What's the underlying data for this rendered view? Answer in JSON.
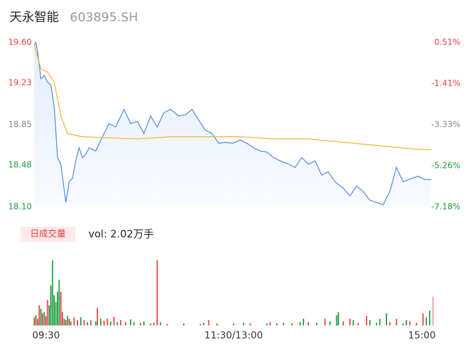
{
  "header": {
    "name": "天永智能",
    "code": "603895.SH"
  },
  "chart_data": [
    {
      "type": "line",
      "xlim": [
        0,
        240
      ],
      "xticks": [
        {
          "value": 0,
          "label": "09:30"
        },
        {
          "value": 120,
          "label": "11:30/13:00"
        },
        {
          "value": 240,
          "label": "15:00"
        }
      ],
      "ylim": [
        18.1,
        19.6
      ],
      "yticks": [
        {
          "value": 19.6,
          "label": "19.60"
        },
        19.23,
        18.85,
        18.48,
        {
          "value": 18.1,
          "label": "18.10"
        }
      ],
      "ytick_colors": [
        "#e84141",
        "#e84141",
        "#888888",
        "#1e9c3c",
        "#1e9c3c"
      ],
      "y2lim": [
        -7.18,
        0.51
      ],
      "y2ticks": [
        {
          "value": 0.51,
          "label": "0.51%"
        },
        {
          "value": -1.41,
          "label": "-1.41%"
        },
        {
          "value": -3.33,
          "label": "-3.33%"
        },
        {
          "value": -5.26,
          "label": "-5.26%"
        },
        {
          "value": -7.18,
          "label": "-7.18%"
        }
      ],
      "y2tick_colors": [
        "#e84141",
        "#e84141",
        "#888888",
        "#1e9c3c",
        "#1e9c3c"
      ],
      "grid": false,
      "series": [
        {
          "color": "#4a86e8",
          "x": [
            0,
            1,
            2,
            4,
            6,
            8,
            10,
            12,
            14,
            16,
            19,
            21,
            23,
            25,
            27,
            29,
            31,
            33,
            37,
            41,
            45,
            49,
            54,
            58,
            62,
            66,
            70,
            74,
            78,
            82,
            87,
            91,
            95,
            99,
            103,
            107,
            111,
            115,
            119,
            124,
            128,
            132,
            136,
            140,
            144,
            148,
            153,
            157,
            161,
            165,
            169,
            173,
            177,
            181,
            186,
            190,
            194,
            198,
            202,
            206,
            210,
            214,
            218,
            222,
            227,
            231,
            235,
            239
          ],
          "values": [
            19.58,
            19.6,
            19.52,
            19.27,
            19.3,
            19.24,
            19.21,
            19.02,
            18.55,
            18.49,
            18.14,
            18.33,
            18.36,
            18.52,
            18.64,
            18.55,
            18.58,
            18.64,
            18.61,
            18.74,
            18.86,
            18.83,
            18.99,
            18.86,
            18.88,
            18.77,
            18.93,
            18.83,
            18.96,
            18.99,
            18.93,
            18.94,
            18.99,
            18.89,
            18.8,
            18.77,
            18.68,
            18.69,
            18.68,
            18.71,
            18.68,
            18.64,
            18.61,
            18.6,
            18.55,
            18.52,
            18.49,
            18.46,
            18.55,
            18.49,
            18.52,
            18.39,
            18.42,
            18.33,
            18.27,
            18.2,
            18.29,
            18.24,
            18.16,
            18.14,
            18.12,
            18.24,
            18.46,
            18.33,
            18.36,
            18.38,
            18.35,
            18.35
          ]
        },
        {
          "color": "#f5b025",
          "x": [
            0,
            4,
            8,
            12,
            16,
            20,
            29,
            62,
            82,
            124,
            144,
            165,
            186,
            206,
            227,
            239
          ],
          "values": [
            19.58,
            19.36,
            19.33,
            19.24,
            18.93,
            18.77,
            18.74,
            18.72,
            18.74,
            18.74,
            18.72,
            18.72,
            18.69,
            18.66,
            18.63,
            18.62
          ]
        }
      ]
    },
    {
      "type": "bar",
      "label": "日成交量",
      "title": "vol: 2.02万手",
      "xlim": [
        0,
        240
      ],
      "ylim": [
        0,
        100
      ],
      "x": [
        0,
        1,
        2,
        3,
        4,
        5,
        6,
        7,
        8,
        9,
        10,
        11,
        12,
        13,
        14,
        15,
        16,
        17,
        18,
        19,
        20,
        21,
        22,
        24,
        26,
        28,
        30,
        32,
        34,
        37,
        38,
        40,
        42,
        44,
        46,
        48,
        50,
        52,
        55,
        58,
        60,
        64,
        66,
        70,
        72,
        74,
        76,
        80,
        90,
        100,
        102,
        105,
        110,
        120,
        126,
        130,
        140,
        142,
        146,
        150,
        155,
        160,
        162,
        165,
        170,
        175,
        178,
        182,
        183,
        186,
        190,
        192,
        195,
        200,
        202,
        206,
        208,
        212,
        214,
        218,
        222,
        224,
        226,
        230,
        234,
        236,
        238,
        240
      ],
      "values": [
        12,
        15,
        10,
        30,
        25,
        18,
        20,
        14,
        38,
        30,
        60,
        97,
        45,
        35,
        50,
        68,
        50,
        20,
        10,
        8,
        14,
        10,
        6,
        12,
        8,
        12,
        8,
        5,
        8,
        6,
        26,
        10,
        7,
        10,
        6,
        13,
        5,
        8,
        5,
        9,
        5,
        4,
        6,
        3,
        4,
        97,
        5,
        2,
        3,
        2,
        4,
        8,
        3,
        3,
        4,
        3,
        3,
        5,
        3,
        4,
        3,
        5,
        10,
        5,
        4,
        10,
        6,
        15,
        20,
        6,
        10,
        8,
        4,
        14,
        8,
        4,
        10,
        18,
        5,
        10,
        3,
        8,
        6,
        4,
        18,
        12,
        22,
        43
      ],
      "colors": [
        "#e84141",
        "#1e9c3c",
        "#e84141",
        "#e84141",
        "#1e9c3c",
        "#e84141",
        "#1e9c3c",
        "#e84141",
        "#e84141",
        "#1e9c3c",
        "#1e9c3c",
        "#1e9c3c",
        "#1e9c3c",
        "#1e9c3c",
        "#1e9c3c",
        "#1e9c3c",
        "#e84141",
        "#e84141",
        "#1e9c3c",
        "#e84141",
        "#1e9c3c",
        "#e84141",
        "#1e9c3c",
        "#e84141",
        "#e84141",
        "#1e9c3c",
        "#e84141",
        "#1e9c3c",
        "#e84141",
        "#1e9c3c",
        "#e84141",
        "#1e9c3c",
        "#e84141",
        "#e84141",
        "#1e9c3c",
        "#e84141",
        "#1e9c3c",
        "#e84141",
        "#e84141",
        "#1e9c3c",
        "#1e9c3c",
        "#e84141",
        "#1e9c3c",
        "#1e9c3c",
        "#e84141",
        "#e84141",
        "#1e9c3c",
        "#e84141",
        "#1e9c3c",
        "#1e9c3c",
        "#e84141",
        "#e84141",
        "#1e9c3c",
        "#e84141",
        "#1e9c3c",
        "#e84141",
        "#1e9c3c",
        "#e84141",
        "#1e9c3c",
        "#e84141",
        "#1e9c3c",
        "#1e9c3c",
        "#1e9c3c",
        "#e84141",
        "#1e9c3c",
        "#e84141",
        "#1e9c3c",
        "#1e9c3c",
        "#1e9c3c",
        "#e84141",
        "#e84141",
        "#1e9c3c",
        "#e84141",
        "#e84141",
        "#1e9c3c",
        "#1e9c3c",
        "#1e9c3c",
        "#1e9c3c",
        "#e84141",
        "#e84141",
        "#1e9c3c",
        "#1e9c3c",
        "#e84141",
        "#e84141",
        "#e84141",
        "#1e9c3c",
        "#1e9c3c",
        "#f2a0a0"
      ]
    }
  ]
}
